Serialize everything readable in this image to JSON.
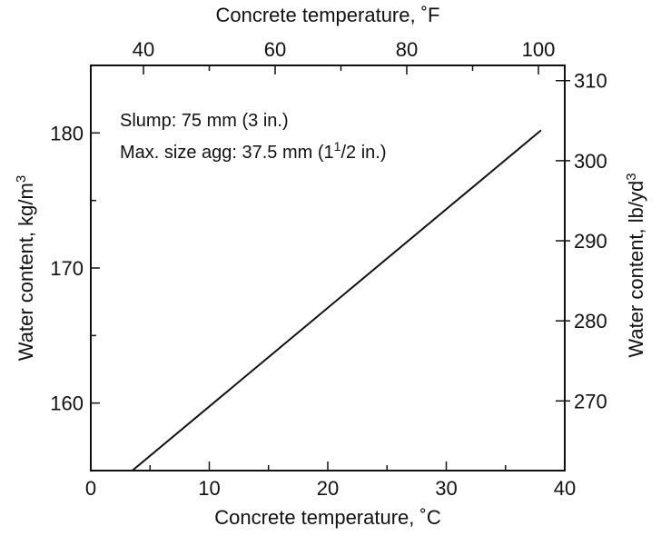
{
  "chart_data": {
    "type": "line",
    "title": "",
    "annotations": {
      "line1": "Slump: 75 mm (3 in.)",
      "line2_prefix": "Max. size agg: 37.5 mm (1",
      "line2_sup": "1",
      "line2_suffix": "/2 in.)"
    },
    "x_bottom": {
      "label": "Concrete temperature, ˚C",
      "range": [
        0,
        40
      ],
      "ticks": [
        0,
        10,
        20,
        30,
        40
      ]
    },
    "x_top": {
      "label": "Concrete temperature, ˚F",
      "range": [
        32,
        104
      ],
      "ticks": [
        40,
        60,
        80,
        100
      ]
    },
    "y_left": {
      "label_main": "Water content, kg/m",
      "label_sup": "3",
      "range": [
        155,
        185
      ],
      "ticks": [
        160,
        170,
        180
      ]
    },
    "y_right": {
      "label_main": "Water content, lb/yd",
      "label_sup": "3",
      "range": [
        261.3,
        311.9
      ],
      "ticks": [
        270,
        280,
        290,
        300,
        310
      ]
    },
    "series": [
      {
        "x": [
          3.5,
          38
        ],
        "y": [
          155,
          180.2
        ]
      }
    ],
    "grid": false,
    "color": "#111111"
  }
}
